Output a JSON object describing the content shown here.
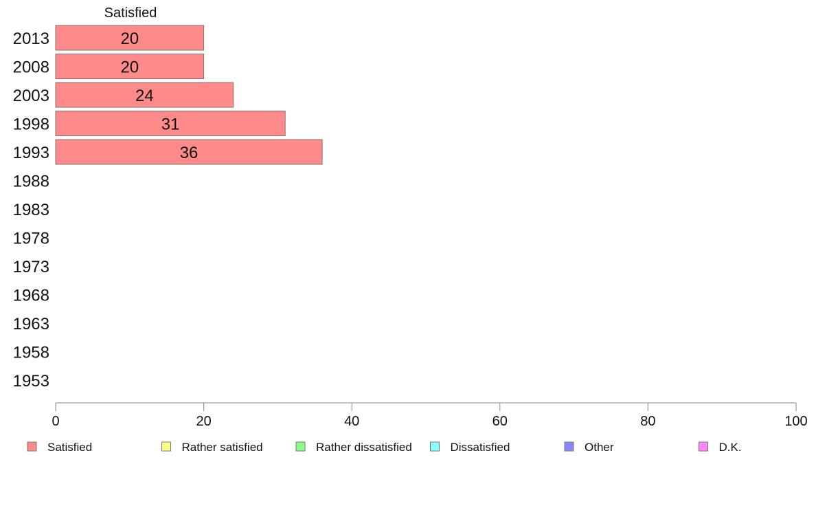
{
  "chart_data": {
    "type": "bar",
    "orientation": "horizontal",
    "stacked": true,
    "categories": [
      "2013",
      "2008",
      "2003",
      "1998",
      "1993",
      "1988",
      "1983",
      "1978",
      "1973",
      "1968",
      "1963",
      "1958",
      "1953"
    ],
    "series": [
      {
        "name": "Satisfied",
        "color": "#ff8a8a",
        "values": [
          20,
          20,
          24,
          31,
          36,
          null,
          null,
          null,
          null,
          null,
          null,
          null,
          null
        ]
      },
      {
        "name": "Rather satisfied",
        "color": "#ffff88",
        "values": [
          null,
          null,
          null,
          null,
          null,
          null,
          null,
          null,
          null,
          null,
          null,
          null,
          null
        ]
      },
      {
        "name": "Rather dissatisfied",
        "color": "#88ff88",
        "values": [
          null,
          null,
          null,
          null,
          null,
          null,
          null,
          null,
          null,
          null,
          null,
          null,
          null
        ]
      },
      {
        "name": "Dissatisfied",
        "color": "#88ffff",
        "values": [
          null,
          null,
          null,
          null,
          null,
          null,
          null,
          null,
          null,
          null,
          null,
          null,
          null
        ]
      },
      {
        "name": "Other",
        "color": "#8888ff",
        "values": [
          null,
          null,
          null,
          null,
          null,
          null,
          null,
          null,
          null,
          null,
          null,
          null,
          null
        ]
      },
      {
        "name": "D.K.",
        "color": "#ff88ff",
        "values": [
          null,
          null,
          null,
          null,
          null,
          null,
          null,
          null,
          null,
          null,
          null,
          null,
          null
        ]
      }
    ],
    "data_labels": [
      "20",
      "20",
      "24",
      "31",
      "36"
    ],
    "series_header": "Satisfied",
    "xlim": [
      0,
      100
    ],
    "xticks": [
      "0",
      "20",
      "40",
      "60",
      "80",
      "100"
    ],
    "grid": false,
    "legend_position": "bottom"
  }
}
